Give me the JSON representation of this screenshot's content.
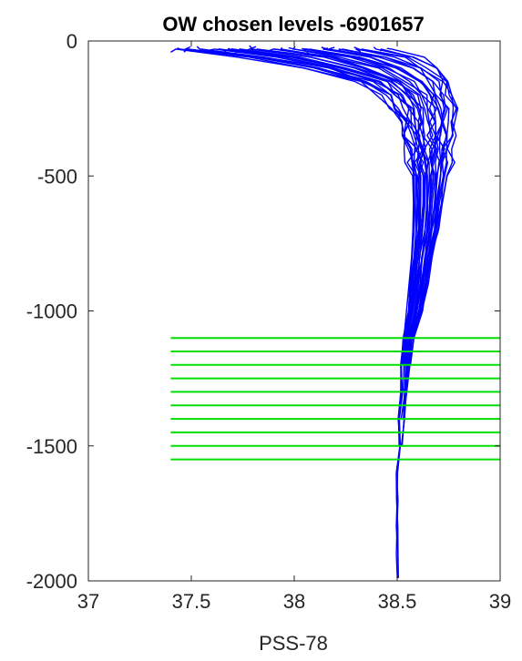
{
  "chart_data": {
    "type": "line",
    "title": "OW chosen levels -6901657",
    "xlabel": "PSS-78",
    "ylabel": "",
    "xlim": [
      37,
      39
    ],
    "ylim": [
      -2000,
      0
    ],
    "xticks": [
      "37",
      "37.5",
      "38",
      "38.5",
      "39"
    ],
    "yticks": [
      "0",
      "-500",
      "-1000",
      "-1500",
      "-2000"
    ],
    "grid": false,
    "legend": "none",
    "colors": {
      "profiles": "#0000ff",
      "levels": "#00e000",
      "axis": "#262626"
    },
    "profile_envelope": {
      "depth": [
        -30,
        -60,
        -100,
        -150,
        -200,
        -250,
        -300,
        -350,
        -400,
        -450,
        -500,
        -600,
        -700,
        -800,
        -900,
        -1000,
        -1100,
        -1200,
        -1300,
        -1400,
        -1500,
        -1600,
        -1700,
        -1800,
        -1900,
        -1990
      ],
      "min": [
        37.4,
        37.75,
        38.05,
        38.3,
        38.42,
        38.48,
        38.52,
        38.53,
        38.55,
        38.56,
        38.57,
        38.58,
        38.58,
        38.57,
        38.56,
        38.55,
        38.53,
        38.52,
        38.52,
        38.51,
        38.51,
        38.5,
        38.5,
        38.5,
        38.5,
        38.5
      ],
      "max": [
        38.45,
        38.62,
        38.72,
        38.76,
        38.78,
        38.79,
        38.78,
        38.77,
        38.76,
        38.75,
        38.74,
        38.72,
        38.7,
        38.67,
        38.65,
        38.62,
        38.58,
        38.56,
        38.55,
        38.54,
        38.53,
        38.52,
        38.51,
        38.51,
        38.51,
        38.51
      ]
    },
    "chosen_levels": {
      "depths": [
        -1100,
        -1150,
        -1200,
        -1250,
        -1300,
        -1350,
        -1400,
        -1450,
        -1500,
        -1550
      ],
      "x_start": 37.4,
      "x_end": 39
    }
  }
}
